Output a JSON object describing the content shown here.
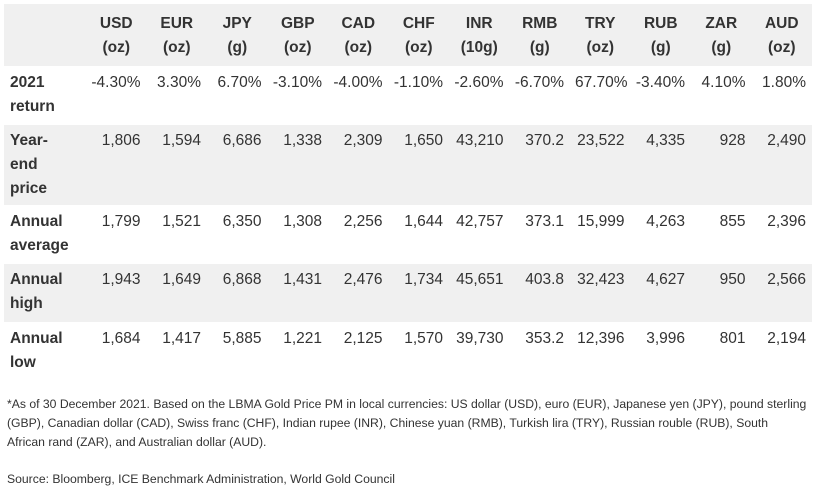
{
  "columns": [
    {
      "code": "USD",
      "unit": "(oz)"
    },
    {
      "code": "EUR",
      "unit": "(oz)"
    },
    {
      "code": "JPY",
      "unit": "(g)"
    },
    {
      "code": "GBP",
      "unit": "(oz)"
    },
    {
      "code": "CAD",
      "unit": "(oz)"
    },
    {
      "code": "CHF",
      "unit": "(oz)"
    },
    {
      "code": "INR",
      "unit": "(10g)"
    },
    {
      "code": "RMB",
      "unit": "(g)"
    },
    {
      "code": "TRY",
      "unit": "(oz)"
    },
    {
      "code": "RUB",
      "unit": "(g)"
    },
    {
      "code": "ZAR",
      "unit": "(g)"
    },
    {
      "code": "AUD",
      "unit": "(oz)"
    }
  ],
  "rows": [
    {
      "label_lines": [
        "2021",
        "return"
      ],
      "values": [
        "-4.30%",
        "3.30%",
        "6.70%",
        "-3.10%",
        "-4.00%",
        "-1.10%",
        "-2.60%",
        "-6.70%",
        "67.70%",
        "-3.40%",
        "4.10%",
        "1.80%"
      ]
    },
    {
      "label_lines": [
        "Year-",
        "end",
        "price"
      ],
      "values": [
        "1,806",
        "1,594",
        "6,686",
        "1,338",
        "2,309",
        "1,650",
        "43,210",
        "370.2",
        "23,522",
        "4,335",
        "928",
        "2,490"
      ]
    },
    {
      "label_lines": [
        "Annual",
        "average"
      ],
      "values": [
        "1,799",
        "1,521",
        "6,350",
        "1,308",
        "2,256",
        "1,644",
        "42,757",
        "373.1",
        "15,999",
        "4,263",
        "855",
        "2,396"
      ]
    },
    {
      "label_lines": [
        "Annual",
        "high"
      ],
      "values": [
        "1,943",
        "1,649",
        "6,868",
        "1,431",
        "2,476",
        "1,734",
        "45,651",
        "403.8",
        "32,423",
        "4,627",
        "950",
        "2,566"
      ]
    },
    {
      "label_lines": [
        "Annual",
        "low"
      ],
      "values": [
        "1,684",
        "1,417",
        "5,885",
        "1,221",
        "2,125",
        "1,570",
        "39,730",
        "353.2",
        "12,396",
        "3,996",
        "801",
        "2,194"
      ]
    }
  ],
  "footnote": "*As of 30 December 2021. Based on the LBMA Gold Price PM in local currencies: US dollar (USD), euro (EUR), Japanese yen (JPY), pound sterling (GBP), Canadian dollar (CAD), Swiss franc (CHF), Indian rupee (INR), Chinese yuan (RMB), Turkish lira (TRY), Russian rouble (RUB), South African rand (ZAR), and Australian dollar (AUD).",
  "source": "Source: Bloomberg, ICE Benchmark Administration, World Gold Council"
}
